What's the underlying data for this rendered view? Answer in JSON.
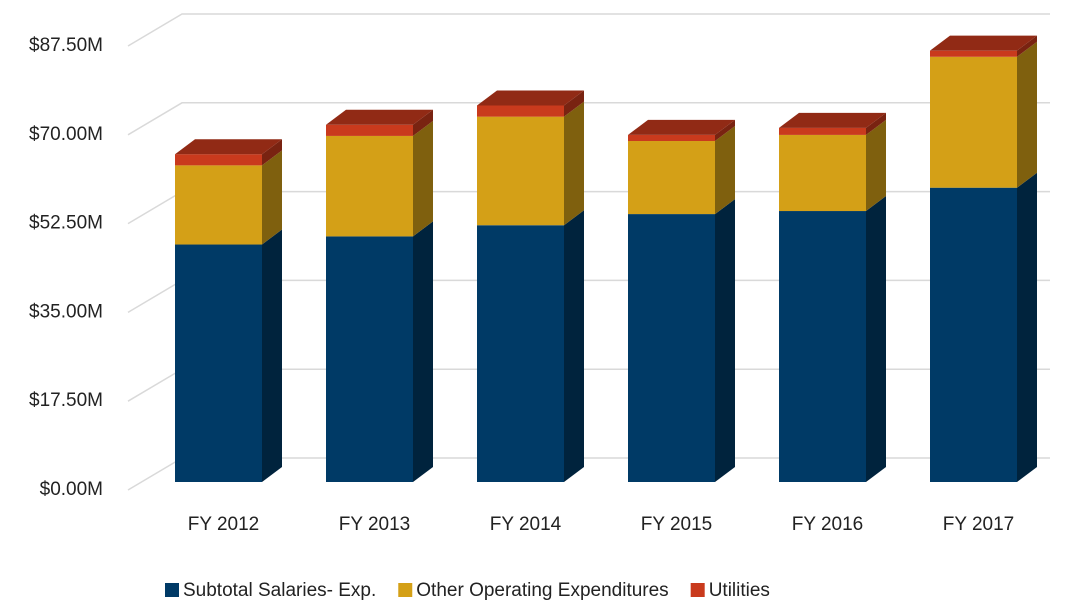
{
  "chart_data": {
    "type": "bar3d-stacked",
    "categories": [
      "FY 2012",
      "FY 2013",
      "FY 2014",
      "FY 2015",
      "FY 2016",
      "FY 2017"
    ],
    "series": [
      {
        "name": "Subtotal Salaries- Exp.",
        "color": "#003a66",
        "values": [
          46.8,
          48.4,
          50.6,
          52.8,
          53.4,
          58.0
        ]
      },
      {
        "name": "Other Operating Expenditures",
        "color": "#d4a017",
        "values": [
          15.6,
          19.8,
          21.4,
          14.4,
          15.0,
          25.8
        ]
      },
      {
        "name": "Utilities",
        "color": "#c93a1d",
        "values": [
          2.2,
          2.2,
          2.2,
          1.2,
          1.4,
          1.2
        ]
      }
    ],
    "ylim": [
      0,
      87.5
    ],
    "yticks": [
      {
        "value": 0,
        "label": "$0.00M"
      },
      {
        "value": 17.5,
        "label": "$17.50M"
      },
      {
        "value": 35,
        "label": "$35.00M"
      },
      {
        "value": 52.5,
        "label": "$52.50M"
      },
      {
        "value": 70,
        "label": "$70.00M"
      },
      {
        "value": 87.5,
        "label": "$87.50M"
      }
    ],
    "grid": true,
    "legend": "bottom"
  }
}
